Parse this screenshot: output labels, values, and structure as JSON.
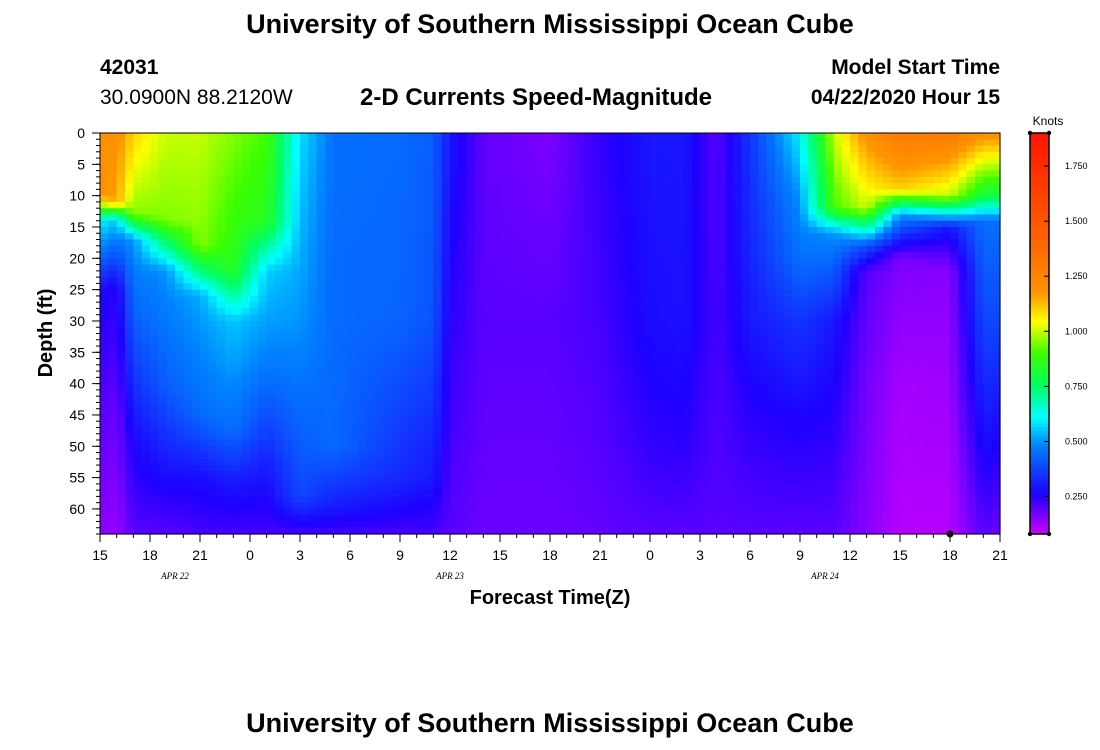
{
  "header": {
    "title": "University of Southern Mississippi Ocean Cube",
    "station_id": "42031",
    "station_coords": "30.0900N 88.2120W",
    "subtitle": "2-D Currents Speed-Magnitude",
    "start_label": "Model Start Time",
    "start_value": "04/22/2020 Hour 15"
  },
  "footer": {
    "title": "University of Southern Mississippi Ocean Cube"
  },
  "chart_data": {
    "type": "heatmap",
    "title": "2-D Currents Speed-Magnitude",
    "xlabel": "Forecast Time(Z)",
    "ylabel": "Depth (ft)",
    "x_range_hours": [
      0,
      54
    ],
    "x_tick_labels": [
      "15",
      "18",
      "21",
      "0",
      "3",
      "6",
      "9",
      "12",
      "15",
      "18",
      "21",
      "0",
      "3",
      "6",
      "9",
      "12",
      "15",
      "18",
      "21"
    ],
    "date_labels": [
      {
        "text": "APR 22",
        "hour": 4.5
      },
      {
        "text": "APR 23",
        "hour": 21
      },
      {
        "text": "APR 24",
        "hour": 43.5
      }
    ],
    "y_range_ft": [
      0,
      64
    ],
    "y_tick_labels": [
      "0",
      "5",
      "10",
      "15",
      "20",
      "25",
      "30",
      "35",
      "40",
      "45",
      "50",
      "55",
      "60"
    ],
    "colorbar": {
      "unit": "Knots",
      "range": [
        0.08,
        1.9
      ],
      "tick_values": [
        0.25,
        0.5,
        0.75,
        1.0,
        1.25,
        1.5,
        1.75
      ],
      "tick_labels": [
        "0.250",
        "0.500",
        "0.750",
        "1.000",
        "1.250",
        "1.500",
        "1.750"
      ]
    },
    "grid": false,
    "profiles": [
      {
        "hour": 0,
        "depths": [
          0,
          10,
          14,
          25,
          45,
          64
        ],
        "speeds": [
          1.2,
          1.2,
          0.6,
          0.28,
          0.2,
          0.15
        ]
      },
      {
        "hour": 1,
        "depths": [
          0,
          11,
          14,
          25,
          45,
          64
        ],
        "speeds": [
          1.2,
          1.15,
          0.55,
          0.25,
          0.18,
          0.13
        ]
      },
      {
        "hour": 2,
        "depths": [
          0,
          13,
          17,
          30,
          48,
          64
        ],
        "speeds": [
          1.1,
          0.95,
          0.5,
          0.42,
          0.28,
          0.2
        ]
      },
      {
        "hour": 4,
        "depths": [
          0,
          14,
          22,
          40,
          55,
          64
        ],
        "speeds": [
          1.0,
          0.95,
          0.5,
          0.42,
          0.28,
          0.2
        ]
      },
      {
        "hour": 6,
        "depths": [
          0,
          18,
          26,
          45,
          55,
          64
        ],
        "speeds": [
          1.0,
          0.95,
          0.52,
          0.44,
          0.28,
          0.22
        ]
      },
      {
        "hour": 8,
        "depths": [
          0,
          22,
          30,
          47,
          56,
          64
        ],
        "speeds": [
          0.95,
          0.85,
          0.55,
          0.45,
          0.3,
          0.22
        ]
      },
      {
        "hour": 10,
        "depths": [
          0,
          14,
          22,
          38,
          54,
          64
        ],
        "speeds": [
          0.9,
          0.85,
          0.56,
          0.46,
          0.3,
          0.22
        ]
      },
      {
        "hour": 12,
        "depths": [
          0,
          10,
          30,
          58,
          64
        ],
        "speeds": [
          0.58,
          0.55,
          0.5,
          0.38,
          0.22
        ]
      },
      {
        "hour": 14,
        "depths": [
          0,
          20,
          50,
          60,
          64
        ],
        "speeds": [
          0.45,
          0.44,
          0.44,
          0.3,
          0.22
        ]
      },
      {
        "hour": 18,
        "depths": [
          0,
          30,
          55,
          64
        ],
        "speeds": [
          0.44,
          0.43,
          0.33,
          0.22
        ]
      },
      {
        "hour": 20,
        "depths": [
          0,
          30,
          55,
          64
        ],
        "speeds": [
          0.42,
          0.4,
          0.3,
          0.22
        ]
      },
      {
        "hour": 21,
        "depths": [
          0,
          30,
          64
        ],
        "speeds": [
          0.3,
          0.25,
          0.2
        ]
      },
      {
        "hour": 23,
        "depths": [
          0,
          30,
          64
        ],
        "speeds": [
          0.19,
          0.2,
          0.18
        ]
      },
      {
        "hour": 27,
        "depths": [
          0,
          30,
          64
        ],
        "speeds": [
          0.16,
          0.2,
          0.18
        ]
      },
      {
        "hour": 30,
        "depths": [
          0,
          30,
          64
        ],
        "speeds": [
          0.24,
          0.22,
          0.19
        ]
      },
      {
        "hour": 33,
        "depths": [
          0,
          30,
          50,
          64
        ],
        "speeds": [
          0.3,
          0.28,
          0.24,
          0.2
        ]
      },
      {
        "hour": 35,
        "depths": [
          0,
          30,
          50,
          64
        ],
        "speeds": [
          0.3,
          0.29,
          0.25,
          0.2
        ]
      },
      {
        "hour": 37,
        "depths": [
          0,
          30,
          64
        ],
        "speeds": [
          0.2,
          0.22,
          0.2
        ]
      },
      {
        "hour": 39,
        "depths": [
          0,
          20,
          30,
          45,
          64
        ],
        "speeds": [
          0.35,
          0.32,
          0.3,
          0.25,
          0.2
        ]
      },
      {
        "hour": 42,
        "depths": [
          0,
          10,
          20,
          30,
          45,
          64
        ],
        "speeds": [
          0.6,
          0.5,
          0.45,
          0.35,
          0.27,
          0.2
        ]
      },
      {
        "hour": 44,
        "depths": [
          0,
          12,
          16,
          30,
          64
        ],
        "speeds": [
          1.0,
          0.9,
          0.5,
          0.3,
          0.2
        ]
      },
      {
        "hour": 46,
        "depths": [
          0,
          12,
          18,
          22,
          40,
          64
        ],
        "speeds": [
          1.2,
          1.0,
          0.4,
          0.2,
          0.17,
          0.15
        ]
      },
      {
        "hour": 48,
        "depths": [
          0,
          9,
          13,
          20,
          40,
          64
        ],
        "speeds": [
          1.3,
          1.1,
          0.5,
          0.16,
          0.12,
          0.1
        ]
      },
      {
        "hour": 51,
        "depths": [
          0,
          10,
          15,
          22,
          45,
          64
        ],
        "speeds": [
          1.3,
          1.0,
          0.3,
          0.15,
          0.12,
          0.1
        ]
      },
      {
        "hour": 53,
        "depths": [
          0,
          10,
          14,
          30,
          50,
          64
        ],
        "speeds": [
          1.2,
          0.8,
          0.45,
          0.38,
          0.28,
          0.2
        ]
      },
      {
        "hour": 54,
        "depths": [
          0,
          10,
          14,
          30,
          50,
          64
        ],
        "speeds": [
          1.2,
          0.8,
          0.45,
          0.38,
          0.26,
          0.18
        ]
      }
    ],
    "marker": {
      "hour": 51,
      "depth": 64
    }
  }
}
